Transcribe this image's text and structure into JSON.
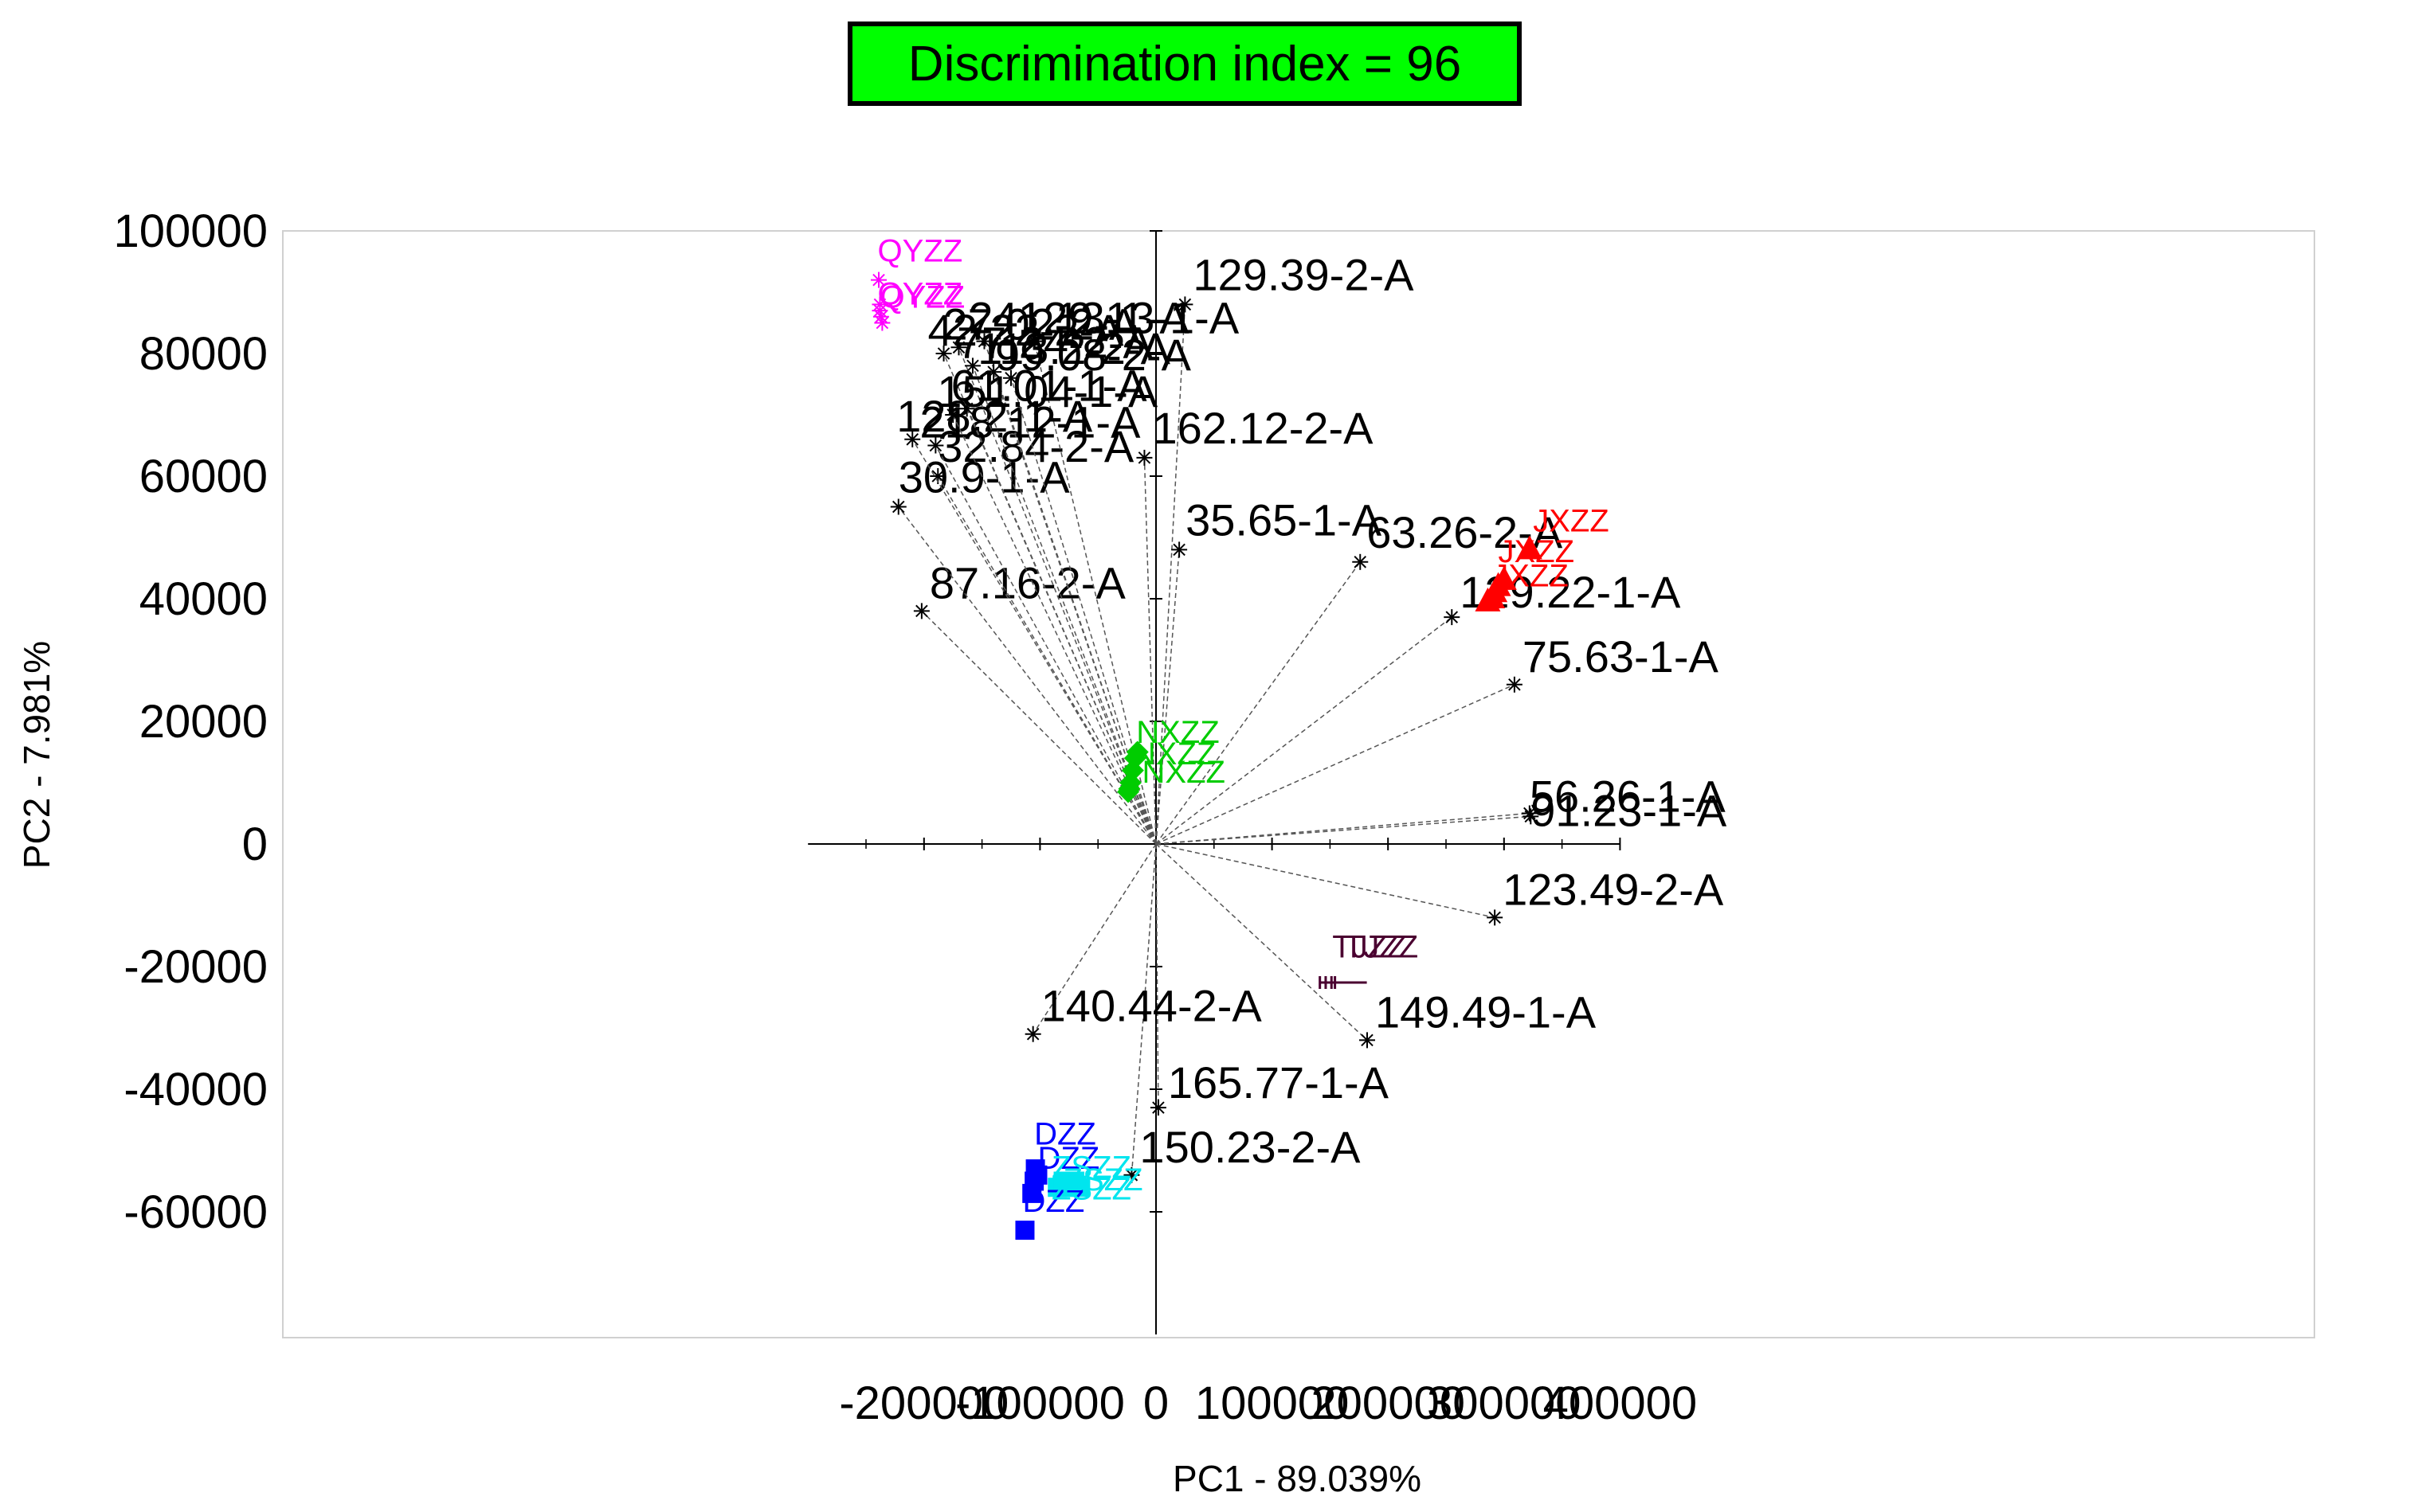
{
  "chart_data": {
    "type": "scatter",
    "title": "Discrimination index = 96",
    "xlabel": "PC1 - 89.039%",
    "ylabel": "PC2 - 7.981%",
    "xlim": [
      -300000,
      400000
    ],
    "ylim": [
      -80000,
      100000
    ],
    "x_ticks": [
      -200000,
      -100000,
      0,
      100000,
      200000,
      300000,
      400000
    ],
    "y_ticks": [
      100000,
      80000,
      60000,
      40000,
      20000,
      0,
      -20000,
      -40000,
      -60000
    ],
    "x_tick_labels": [
      "-200000",
      "-100000",
      "0",
      "100000",
      "200000",
      "300000",
      "400000"
    ],
    "y_tick_labels": [
      "100000",
      "80000",
      "60000",
      "40000",
      "20000",
      "0",
      "-20000",
      "-40000",
      "-60000"
    ],
    "loading_vectors": [
      {
        "label": "129.39-2-A",
        "x": 25000,
        "y": 88000
      },
      {
        "label": "162.12-2-A",
        "x": -10000,
        "y": 63000
      },
      {
        "label": "35.65-1-A",
        "x": 20000,
        "y": 48000
      },
      {
        "label": "63.26-2-A",
        "x": 176000,
        "y": 46000
      },
      {
        "label": "129.22-1-A",
        "x": 255000,
        "y": 37000
      },
      {
        "label": "75.63-1-A",
        "x": 309000,
        "y": 26000
      },
      {
        "label": "56.26-1-A",
        "x": 322000,
        "y": 5000
      },
      {
        "label": "91.23-1-A",
        "x": 323000,
        "y": 4500
      },
      {
        "label": "123.49-2-A",
        "x": 292000,
        "y": -12000
      },
      {
        "label": "149.49-1-A",
        "x": 182000,
        "y": -32000
      },
      {
        "label": "165.77-1-A",
        "x": 2000,
        "y": -43000
      },
      {
        "label": "150.23-2-A",
        "x": -21000,
        "y": -54000
      },
      {
        "label": "140.44-2-A",
        "x": -106000,
        "y": -31000
      },
      {
        "label": "87.16-2-A",
        "x": -202000,
        "y": 38000
      },
      {
        "label": "30.9-1-A",
        "x": -222000,
        "y": 55000
      },
      {
        "label": "32.84-2-A",
        "x": -188000,
        "y": 60000
      },
      {
        "label": "129.13-1-A",
        "x": -105000,
        "y": 82000
      },
      {
        "label": "241.13-1-A",
        "x": -148000,
        "y": 82000
      },
      {
        "label": "218.12-1-A",
        "x": -190000,
        "y": 65000
      },
      {
        "label": "128.2-1-A",
        "x": -210000,
        "y": 66000
      },
      {
        "label": "42.22-2-A",
        "x": -183000,
        "y": 80000
      },
      {
        "label": "27.02-2-A",
        "x": -170000,
        "y": 81000
      },
      {
        "label": "77.24-2-A",
        "x": -158000,
        "y": 78000
      },
      {
        "label": "113.2-2-A",
        "x": -140000,
        "y": 77000
      },
      {
        "label": "99.08-2-A",
        "x": -125000,
        "y": 76000
      },
      {
        "label": "151.04-1-A",
        "x": -175000,
        "y": 70000
      },
      {
        "label": "61.01-1-A",
        "x": -163000,
        "y": 71000
      }
    ],
    "series": [
      {
        "name": "QYZZ",
        "color": "#ff00ff",
        "marker": "asterisk",
        "points": [
          [
            -239000,
            92000
          ],
          [
            -238000,
            88000
          ],
          [
            -237000,
            86000
          ],
          [
            -236000,
            85000
          ],
          [
            -238000,
            87000
          ]
        ]
      },
      {
        "name": "JXZZ",
        "color": "#ff0000",
        "marker": "triangle",
        "points": [
          [
            322000,
            48000
          ],
          [
            295000,
            42000
          ],
          [
            290000,
            40000
          ],
          [
            286000,
            39500
          ],
          [
            300000,
            43000
          ],
          [
            292000,
            41000
          ]
        ]
      },
      {
        "name": "NXZZ",
        "color": "#00cc00",
        "marker": "diamond",
        "points": [
          [
            -24000,
            8500
          ],
          [
            -22000,
            10000
          ],
          [
            -20000,
            12000
          ],
          [
            -18000,
            14000
          ],
          [
            -16000,
            15000
          ],
          [
            -23000,
            9000
          ]
        ]
      },
      {
        "name": "DZZ",
        "color": "#0000ff",
        "marker": "square",
        "points": [
          [
            -113000,
            -63000
          ],
          [
            -107000,
            -57000
          ],
          [
            -105000,
            -55000
          ],
          [
            -104000,
            -53000
          ],
          [
            -102000,
            -54000
          ]
        ]
      },
      {
        "name": "ZSZZ",
        "color": "#00e5ee",
        "marker": "square",
        "points": [
          [
            -85000,
            -56000
          ],
          [
            -80000,
            -55000
          ],
          [
            -75000,
            -56000
          ],
          [
            -70000,
            -55000
          ],
          [
            -65000,
            -56000
          ]
        ]
      },
      {
        "name": "TJZZ",
        "color": "#4a0030",
        "marker": "bar",
        "points": [
          [
            155000,
            -20000
          ],
          [
            160000,
            -20000
          ],
          [
            165000,
            -20000
          ],
          [
            168000,
            -20000
          ]
        ]
      }
    ],
    "group_labels": [
      {
        "text": "QYZZ",
        "x": -240000,
        "y": 95000
      },
      {
        "text": "QYZZ",
        "x": -240000,
        "y": 88000
      },
      {
        "text": "QYZZ",
        "x": -238000,
        "y": 87500
      },
      {
        "text": "JXZZ",
        "x": 325000,
        "y": 51000
      },
      {
        "text": "JXZZ",
        "x": 295000,
        "y": 46000
      },
      {
        "text": "JXZZ",
        "x": 290000,
        "y": 42000
      },
      {
        "text": "NXZZ",
        "x": -17000,
        "y": 16500
      },
      {
        "text": "NXZZ",
        "x": -20000,
        "y": 13000
      },
      {
        "text": "NXZZ",
        "x": -12000,
        "y": 10000
      },
      {
        "text": "DZZ",
        "x": -105000,
        "y": -49000
      },
      {
        "text": "DZZ",
        "x": -102000,
        "y": -53000
      },
      {
        "text": "DZZ",
        "x": -115000,
        "y": -60000
      },
      {
        "text": "ZSZZ",
        "x": -90000,
        "y": -54500
      },
      {
        "text": "ZSZZ",
        "x": -80000,
        "y": -56500
      },
      {
        "text": "ZSZZ",
        "x": -90000,
        "y": -58000
      },
      {
        "text": "TJZZ",
        "x": 152000,
        "y": -18500
      },
      {
        "text": "TJZZ",
        "x": 162000,
        "y": -18500
      }
    ]
  }
}
